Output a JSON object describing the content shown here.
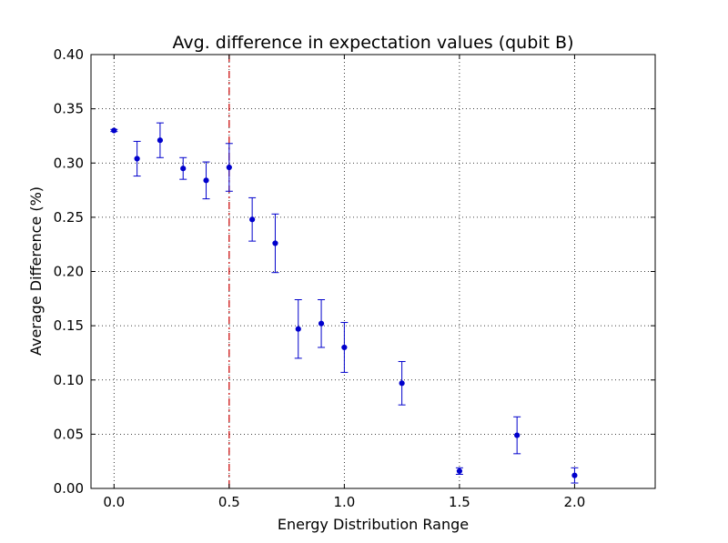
{
  "chart_data": {
    "type": "scatter",
    "title": "Avg. difference in expectation values (qubit B)",
    "xlabel": "Energy Distribution Range",
    "ylabel": "Average Difference (%)",
    "xlim": [
      -0.1,
      2.35
    ],
    "ylim": [
      0.0,
      0.4
    ],
    "x_ticks": [
      "0.0",
      "0.5",
      "1.0",
      "1.5",
      "2.0"
    ],
    "y_ticks": [
      "0.00",
      "0.05",
      "0.10",
      "0.15",
      "0.20",
      "0.25",
      "0.30",
      "0.35",
      "0.40"
    ],
    "grid": true,
    "grid_style": "dotted",
    "marker_color": "#0000cc",
    "reference_line": {
      "x": 0.5,
      "color": "#cc0000",
      "style": "dash-dot"
    },
    "series": [
      {
        "points": [
          {
            "x": 0.0,
            "y": 0.33,
            "err": 0.001
          },
          {
            "x": 0.1,
            "y": 0.304,
            "err": 0.016
          },
          {
            "x": 0.2,
            "y": 0.321,
            "err": 0.016
          },
          {
            "x": 0.3,
            "y": 0.295,
            "err": 0.01
          },
          {
            "x": 0.4,
            "y": 0.284,
            "err": 0.017
          },
          {
            "x": 0.5,
            "y": 0.296,
            "err": 0.022
          },
          {
            "x": 0.6,
            "y": 0.248,
            "err": 0.02
          },
          {
            "x": 0.7,
            "y": 0.226,
            "err": 0.027
          },
          {
            "x": 0.8,
            "y": 0.147,
            "err": 0.027
          },
          {
            "x": 0.9,
            "y": 0.152,
            "err": 0.022
          },
          {
            "x": 1.0,
            "y": 0.13,
            "err": 0.023
          },
          {
            "x": 1.25,
            "y": 0.097,
            "err": 0.02
          },
          {
            "x": 1.5,
            "y": 0.016,
            "err": 0.003
          },
          {
            "x": 1.75,
            "y": 0.049,
            "err": 0.017
          },
          {
            "x": 2.0,
            "y": 0.012,
            "err": 0.007
          }
        ]
      }
    ]
  }
}
